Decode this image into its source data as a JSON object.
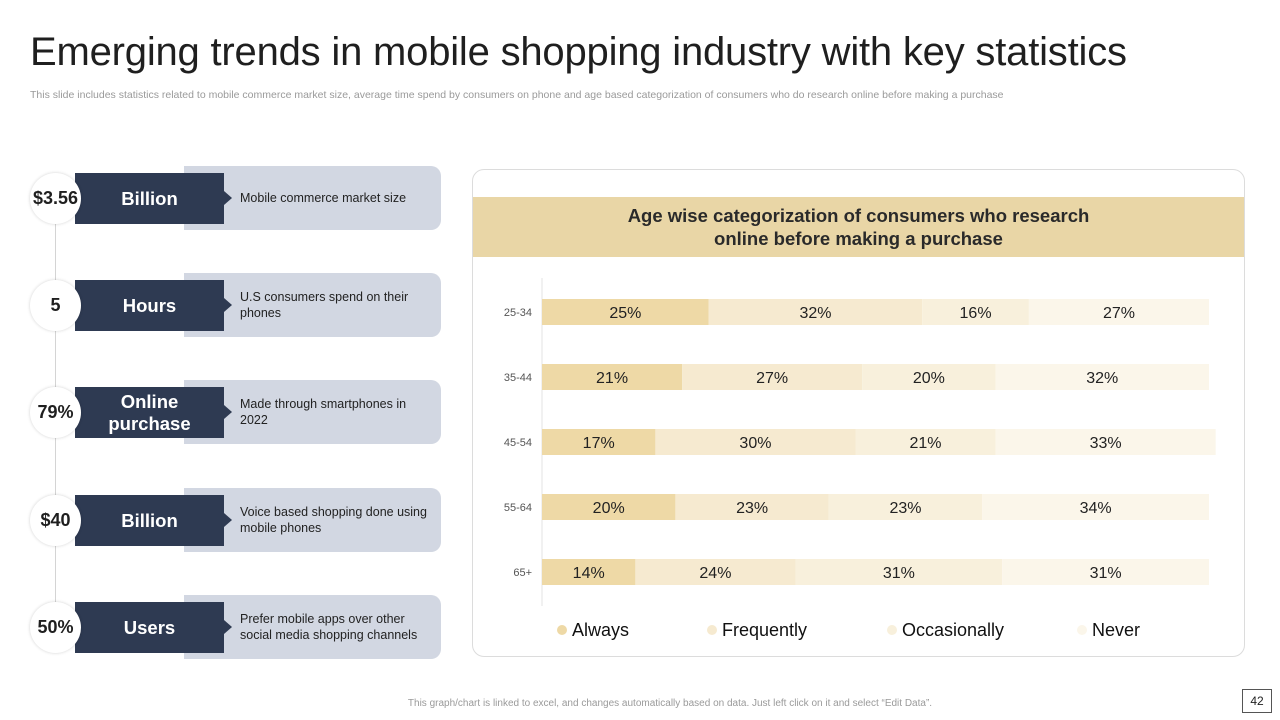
{
  "header": {
    "title": "Emerging trends in mobile shopping industry with key statistics",
    "subtitle": "This slide includes statistics related to mobile commerce market size, average time spend by consumers on phone and age based categorization of consumers who do research online before making a purchase"
  },
  "stats": [
    {
      "value": "$3.56",
      "label": "Billion",
      "description": "Mobile commerce market size"
    },
    {
      "value": "5",
      "label": "Hours",
      "description": "U.S consumers spend on their phones"
    },
    {
      "value": "79%",
      "label": "Online purchase",
      "description": "Made through smartphones in 2022"
    },
    {
      "value": "$40",
      "label": "Billion",
      "description": "Voice based shopping done using mobile phones"
    },
    {
      "value": "50%",
      "label": "Users",
      "description": "Prefer mobile apps over other social media shopping channels"
    }
  ],
  "colors": {
    "dark": "#2e3a52",
    "panel": "#d2d7e2",
    "header": "#e9d6a6",
    "series": [
      "#eed9a6",
      "#f6ead0",
      "#f8f0dc",
      "#fbf6ea"
    ]
  },
  "chart_data": {
    "type": "bar",
    "orientation": "horizontal",
    "stacked": true,
    "title": "Age wise categorization of consumers who research online before making a purchase",
    "categories": [
      "25-34",
      "35-44",
      "45-54",
      "55-64",
      "65+"
    ],
    "series": [
      {
        "name": "Always",
        "values": [
          25,
          21,
          17,
          20,
          14
        ]
      },
      {
        "name": "Frequently",
        "values": [
          32,
          27,
          30,
          23,
          24
        ]
      },
      {
        "name": "Occasionally",
        "values": [
          16,
          20,
          21,
          23,
          31
        ]
      },
      {
        "name": "Never",
        "values": [
          27,
          32,
          33,
          34,
          31
        ]
      }
    ],
    "value_suffix": "%",
    "xlim": [
      0,
      100
    ],
    "legend": "bottom",
    "grid": false
  },
  "footer": {
    "note": "This graph/chart is linked to excel, and changes automatically based on data. Just left click on it and select “Edit Data”.",
    "page_number": "42"
  }
}
